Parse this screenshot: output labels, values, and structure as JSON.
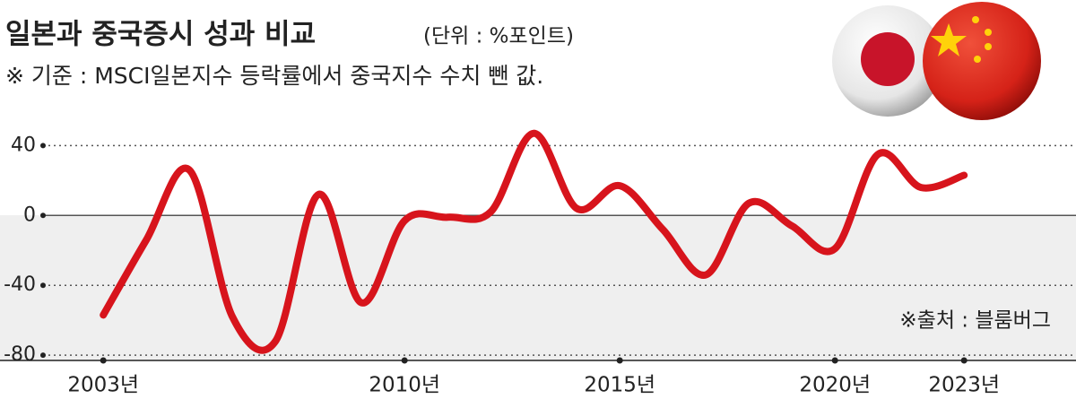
{
  "chart_data": {
    "type": "line",
    "title": "일본과 중국증시 성과 비교",
    "subtitle": "(단위 : %포인트)",
    "note": "※ 기준 : MSCI일본지수 등락률에서 중국지수 수치 뺀 값.",
    "source": "※출처 : 블룸버그",
    "x": [
      2003,
      2004,
      2005,
      2006,
      2007,
      2008,
      2009,
      2010,
      2011,
      2012,
      2013,
      2014,
      2015,
      2016,
      2017,
      2018,
      2019,
      2020,
      2021,
      2022,
      2023
    ],
    "values": [
      -57,
      -14,
      26,
      -58,
      -72,
      12,
      -50,
      -3,
      -1,
      2,
      47,
      4,
      17,
      -8,
      -34,
      7,
      -6,
      -19,
      35,
      16,
      23
    ],
    "color": "#d7141c",
    "xlim": [
      2000.6,
      2025.6
    ],
    "ylim": [
      -83,
      53
    ],
    "xticks": [
      {
        "value": 2003,
        "label": "2003년"
      },
      {
        "value": 2010,
        "label": "2010년"
      },
      {
        "value": 2015,
        "label": "2015년"
      },
      {
        "value": 2020,
        "label": "2020년"
      },
      {
        "value": 2023,
        "label": "2023년"
      }
    ],
    "yticks": [
      40,
      0,
      -40,
      -80
    ],
    "grid": true
  }
}
